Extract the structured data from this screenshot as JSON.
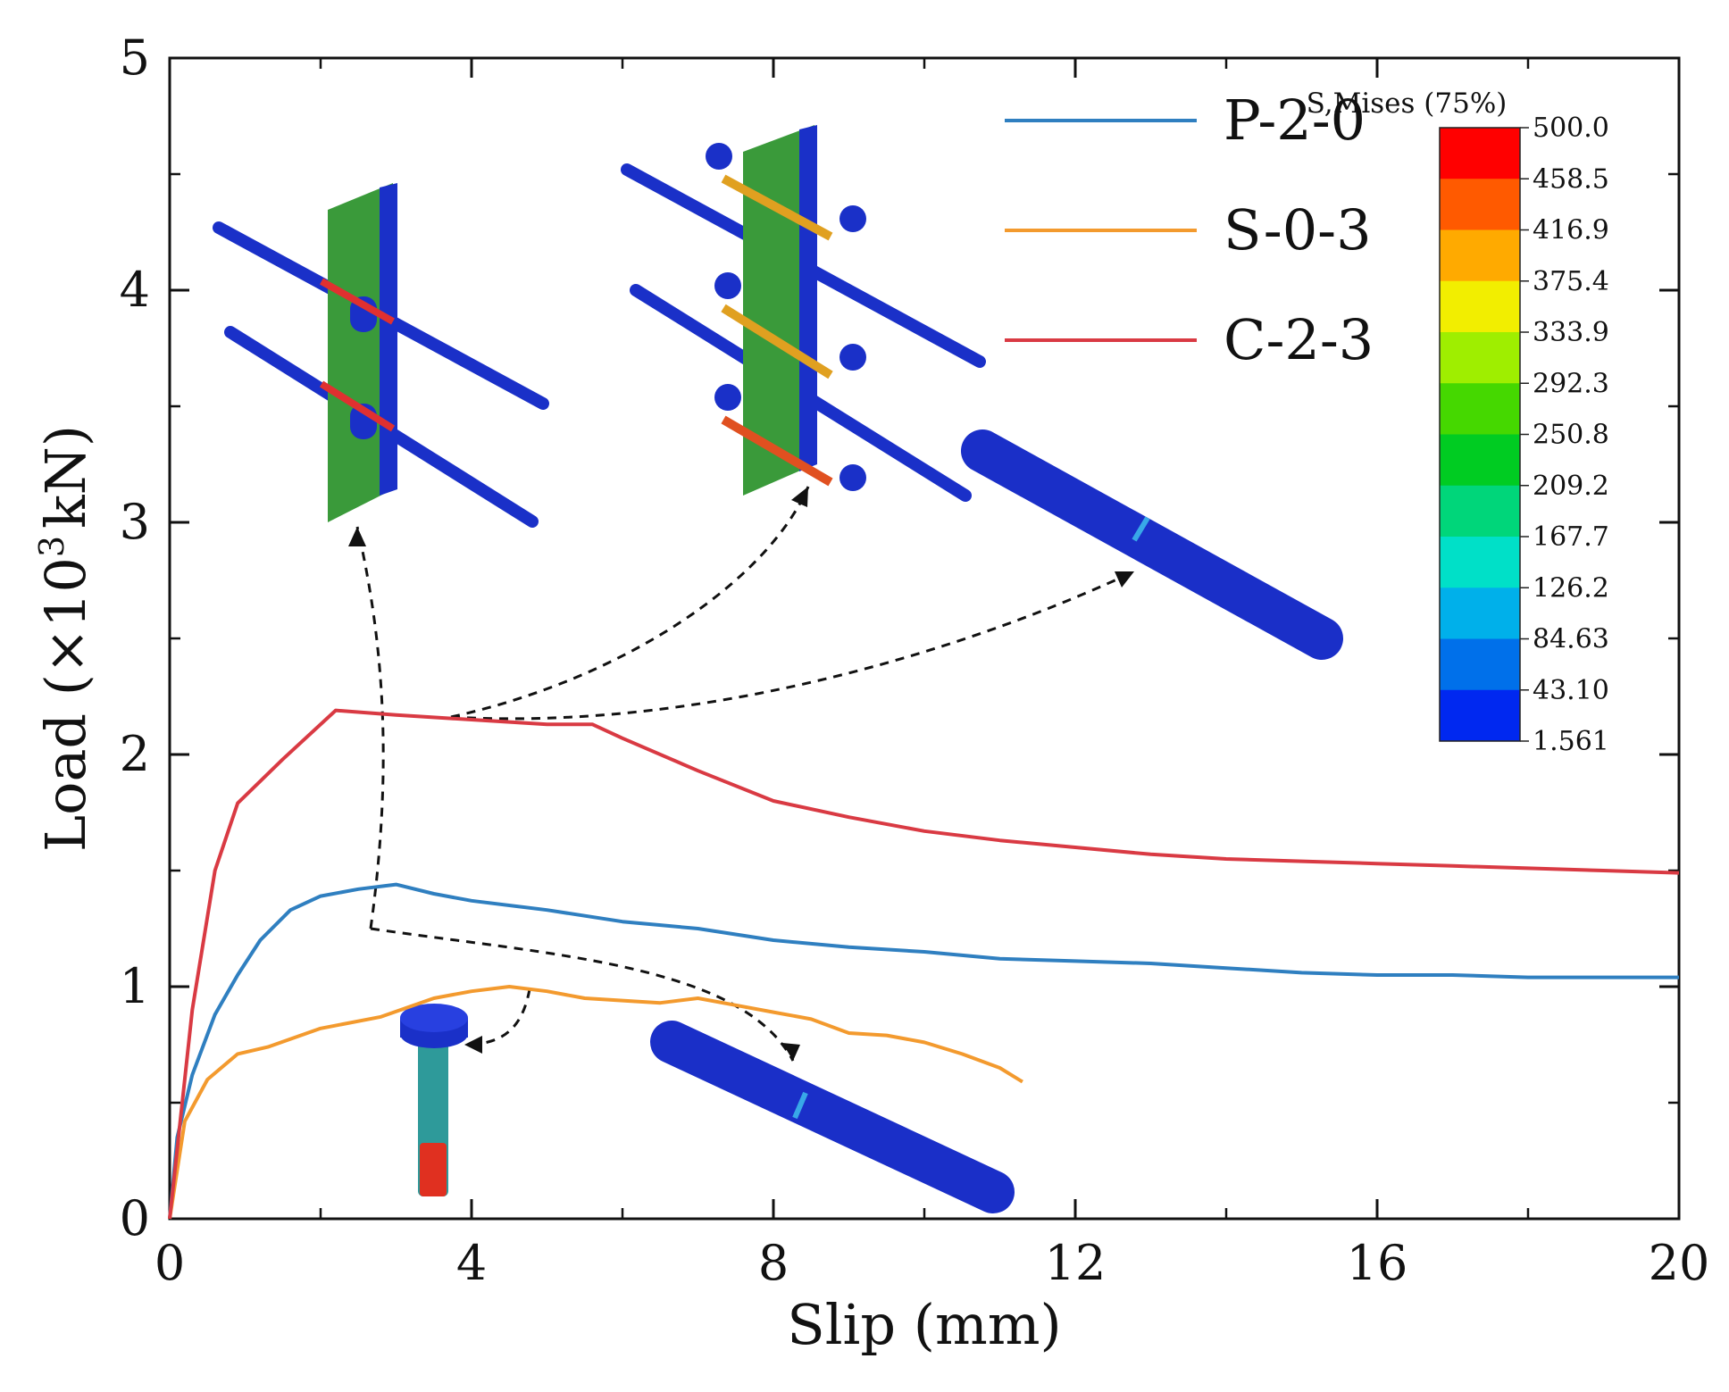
{
  "chart_data": {
    "type": "line",
    "xlabel": "Slip (mm)",
    "ylabel_main": "Load (×10",
    "ylabel_sup": "3",
    "ylabel_end": "kN)",
    "xlim": [
      0,
      20
    ],
    "ylim": [
      0,
      5
    ],
    "x_ticks": [
      {
        "v": 0,
        "label": "0"
      },
      {
        "v": 4,
        "label": "4"
      },
      {
        "v": 8,
        "label": "8"
      },
      {
        "v": 12,
        "label": "12"
      },
      {
        "v": 16,
        "label": "16"
      },
      {
        "v": 20,
        "label": "20"
      }
    ],
    "x_minor_ticks": [
      2,
      6,
      10,
      14,
      18
    ],
    "y_ticks": [
      {
        "v": 0,
        "label": "0"
      },
      {
        "v": 1,
        "label": "1"
      },
      {
        "v": 2,
        "label": "2"
      },
      {
        "v": 3,
        "label": "3"
      },
      {
        "v": 4,
        "label": "4"
      },
      {
        "v": 5,
        "label": "5"
      }
    ],
    "y_minor_ticks": [
      0.5,
      1.5,
      2.5,
      3.5,
      4.5
    ],
    "legend_position": "top-right",
    "series": [
      {
        "name": "P-2-0",
        "color": "#2f7fc0",
        "points": [
          [
            0,
            0
          ],
          [
            0.1,
            0.35
          ],
          [
            0.3,
            0.62
          ],
          [
            0.6,
            0.88
          ],
          [
            0.9,
            1.05
          ],
          [
            1.2,
            1.2
          ],
          [
            1.6,
            1.33
          ],
          [
            2.0,
            1.39
          ],
          [
            2.5,
            1.42
          ],
          [
            3.0,
            1.44
          ],
          [
            3.5,
            1.4
          ],
          [
            4.0,
            1.37
          ],
          [
            5.0,
            1.33
          ],
          [
            6.0,
            1.28
          ],
          [
            7.0,
            1.25
          ],
          [
            8.0,
            1.2
          ],
          [
            9.0,
            1.17
          ],
          [
            10.0,
            1.15
          ],
          [
            11.0,
            1.12
          ],
          [
            12.0,
            1.11
          ],
          [
            13.0,
            1.1
          ],
          [
            14.0,
            1.08
          ],
          [
            15.0,
            1.06
          ],
          [
            16.0,
            1.05
          ],
          [
            17.0,
            1.05
          ],
          [
            18.0,
            1.04
          ],
          [
            19.0,
            1.04
          ],
          [
            20.0,
            1.04
          ]
        ]
      },
      {
        "name": "S-0-3",
        "color": "#f39a2e",
        "points": [
          [
            0,
            0
          ],
          [
            0.2,
            0.42
          ],
          [
            0.5,
            0.6
          ],
          [
            0.9,
            0.71
          ],
          [
            1.3,
            0.74
          ],
          [
            2.0,
            0.82
          ],
          [
            2.8,
            0.87
          ],
          [
            3.5,
            0.95
          ],
          [
            4.0,
            0.98
          ],
          [
            4.5,
            1.0
          ],
          [
            5.0,
            0.98
          ],
          [
            5.5,
            0.95
          ],
          [
            6.0,
            0.94
          ],
          [
            6.5,
            0.93
          ],
          [
            7.0,
            0.95
          ],
          [
            7.5,
            0.92
          ],
          [
            8.0,
            0.89
          ],
          [
            8.5,
            0.86
          ],
          [
            9.0,
            0.8
          ],
          [
            9.5,
            0.79
          ],
          [
            10.0,
            0.76
          ],
          [
            10.5,
            0.71
          ],
          [
            11.0,
            0.65
          ],
          [
            11.3,
            0.59
          ]
        ]
      },
      {
        "name": "C-2-3",
        "color": "#d93a43",
        "points": [
          [
            0,
            0
          ],
          [
            0.3,
            0.9
          ],
          [
            0.6,
            1.5
          ],
          [
            0.9,
            1.79
          ],
          [
            1.5,
            1.98
          ],
          [
            2.2,
            2.19
          ],
          [
            3.0,
            2.17
          ],
          [
            4.0,
            2.15
          ],
          [
            5.0,
            2.13
          ],
          [
            5.6,
            2.13
          ],
          [
            6.0,
            2.07
          ],
          [
            7.0,
            1.93
          ],
          [
            8.0,
            1.8
          ],
          [
            9.0,
            1.73
          ],
          [
            10.0,
            1.67
          ],
          [
            11.0,
            1.63
          ],
          [
            12.0,
            1.6
          ],
          [
            13.0,
            1.57
          ],
          [
            14.0,
            1.55
          ],
          [
            15.0,
            1.54
          ],
          [
            16.0,
            1.53
          ],
          [
            17.0,
            1.52
          ],
          [
            18.0,
            1.51
          ],
          [
            19.0,
            1.5
          ],
          [
            20.0,
            1.49
          ]
        ]
      }
    ],
    "colorbar": {
      "title": "S,Mises (75%)",
      "labels": [
        "500.0",
        "458.5",
        "416.9",
        "375.4",
        "333.9",
        "292.3",
        "250.8",
        "209.2",
        "167.7",
        "126.2",
        "84.63",
        "43.10",
        "1.561"
      ],
      "colors": [
        "#ff0000",
        "#ff5a00",
        "#ffaa00",
        "#f2ee00",
        "#9fee00",
        "#45d800",
        "#00cc22",
        "#00d67a",
        "#00e0c8",
        "#00b0ea",
        "#0070ea",
        "#0028f0"
      ]
    }
  }
}
